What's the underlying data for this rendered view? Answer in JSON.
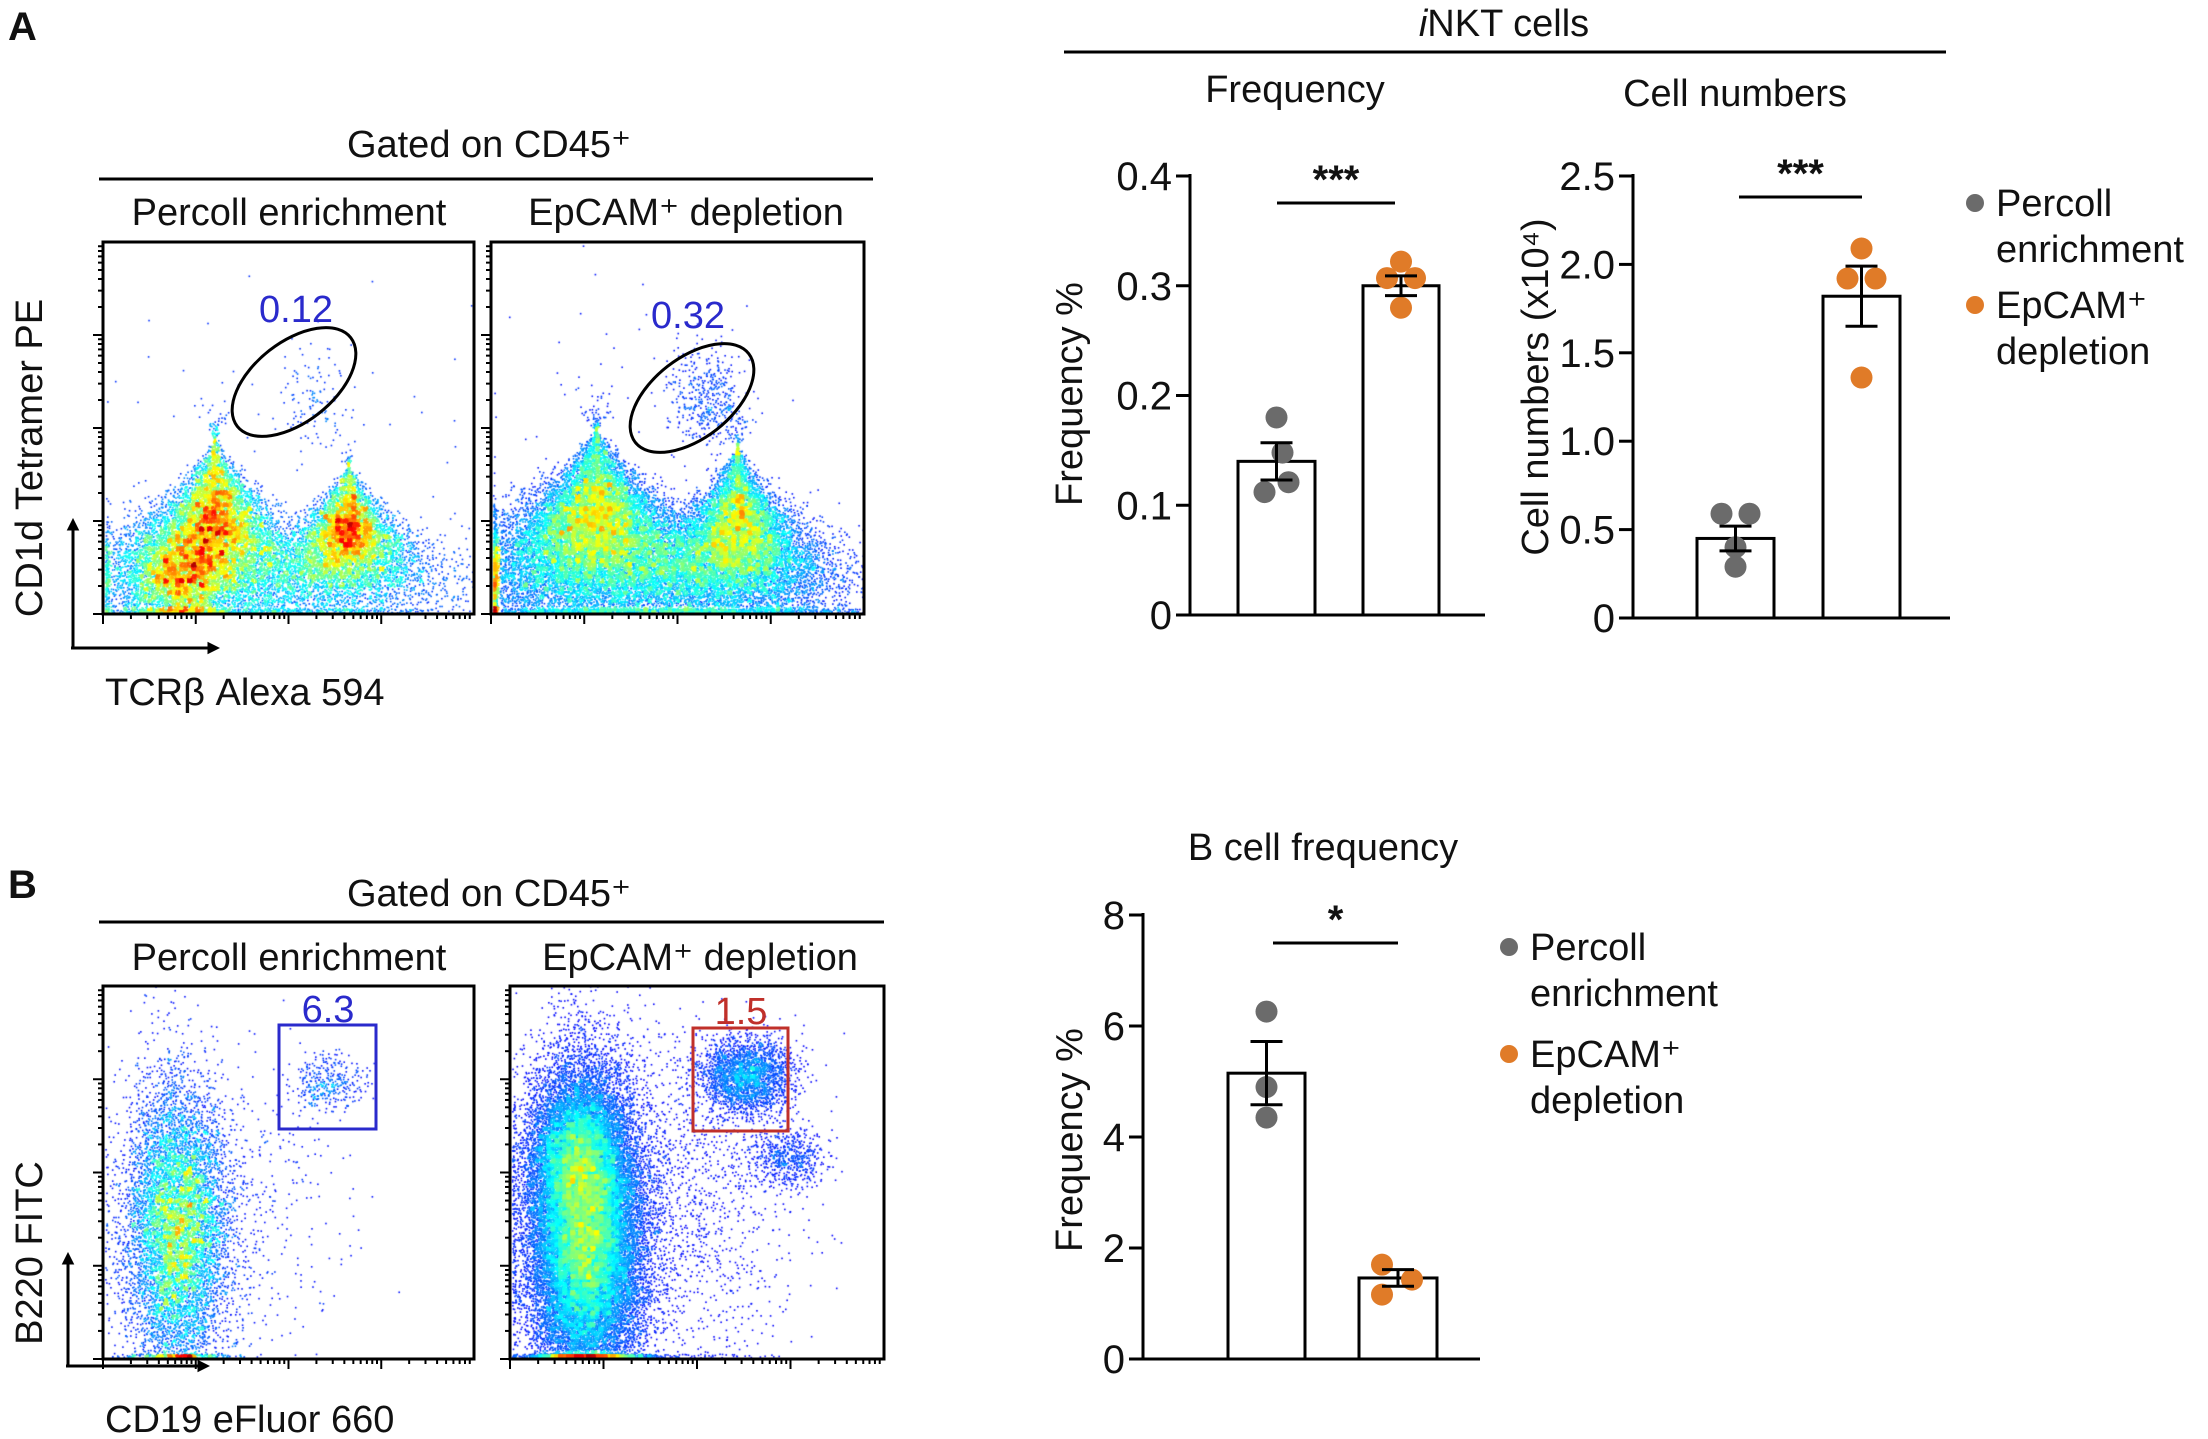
{
  "panels": {
    "a": "A",
    "b": "B"
  },
  "flow_a": {
    "gated_title": "Gated on CD45⁺",
    "left_title": "Percoll enrichment",
    "right_title": "EpCAM⁺ depletion",
    "ylabel": "CD1d Tetramer PE",
    "xlabel": "TCRβ Alexa 594",
    "gate_left": "0.12",
    "gate_right": "0.32",
    "gate_shape": "ellipse",
    "gate_color": "#000000",
    "value_color": "#2a2acc"
  },
  "flow_b": {
    "gated_title": "Gated on CD45⁺",
    "left_title": "Percoll enrichment",
    "right_title": "EpCAM⁺ depletion",
    "ylabel": "B220 FITC",
    "xlabel": "CD19 eFluor 660",
    "gate_left": "6.3",
    "gate_right": "1.5",
    "gate_shape": "rectangle",
    "left_color": "#2a2acc",
    "right_color": "#c0302a"
  },
  "inkt_header": {
    "prefix": "i",
    "rest": "NKT cells"
  },
  "legend": {
    "series": [
      {
        "line1": "Percoll",
        "line2": "enrichment",
        "color": "#6b6b6b"
      },
      {
        "line1": "EpCAM⁺",
        "line2": "depletion",
        "color": "#e07b28"
      }
    ]
  },
  "chart_data": [
    {
      "type": "bar",
      "title": "Frequency",
      "ylabel": "Frequency %",
      "ylim": [
        0,
        0.4
      ],
      "yticks": [
        "0",
        "0.1",
        "0.2",
        "0.3",
        "0.4"
      ],
      "categories": [
        "Percoll enrichment",
        "EpCAM⁺ depletion"
      ],
      "series": [
        {
          "name": "Percoll enrichment",
          "mean": 0.14,
          "sem": 0.017,
          "points": [
            0.18,
            0.148,
            0.121,
            0.112
          ],
          "color": "#6b6b6b"
        },
        {
          "name": "EpCAM⁺ depletion",
          "mean": 0.3,
          "sem": 0.009,
          "points": [
            0.322,
            0.307,
            0.307,
            0.28
          ],
          "color": "#e07b28"
        }
      ],
      "significance": "***",
      "legend": "right"
    },
    {
      "type": "bar",
      "title": "Cell numbers",
      "ylabel": "Cell numbers (x10⁴)",
      "ylim": [
        0,
        2.5
      ],
      "yticks": [
        "0",
        "0.5",
        "1.0",
        "1.5",
        "2.0",
        "2.5"
      ],
      "categories": [
        "Percoll enrichment",
        "EpCAM⁺ depletion"
      ],
      "series": [
        {
          "name": "Percoll enrichment",
          "mean": 0.45,
          "sem": 0.07,
          "points": [
            0.59,
            0.59,
            0.4,
            0.29
          ],
          "color": "#6b6b6b"
        },
        {
          "name": "EpCAM⁺ depletion",
          "mean": 1.82,
          "sem": 0.17,
          "points": [
            2.09,
            1.92,
            1.92,
            1.36
          ],
          "color": "#e07b28"
        }
      ],
      "significance": "***",
      "legend": "right"
    },
    {
      "type": "bar",
      "title": "B cell frequency",
      "ylabel": "Frequency %",
      "ylim": [
        0,
        8
      ],
      "yticks": [
        "0",
        "2",
        "4",
        "6",
        "8"
      ],
      "categories": [
        "Percoll enrichment",
        "EpCAM⁺ depletion"
      ],
      "series": [
        {
          "name": "Percoll enrichment",
          "mean": 5.15,
          "sem": 0.57,
          "points": [
            6.26,
            4.9,
            4.35
          ],
          "color": "#6b6b6b"
        },
        {
          "name": "EpCAM⁺ depletion",
          "mean": 1.46,
          "sem": 0.15,
          "points": [
            1.7,
            1.43,
            1.16
          ],
          "color": "#e07b28"
        }
      ],
      "significance": "*",
      "legend": "right"
    }
  ]
}
